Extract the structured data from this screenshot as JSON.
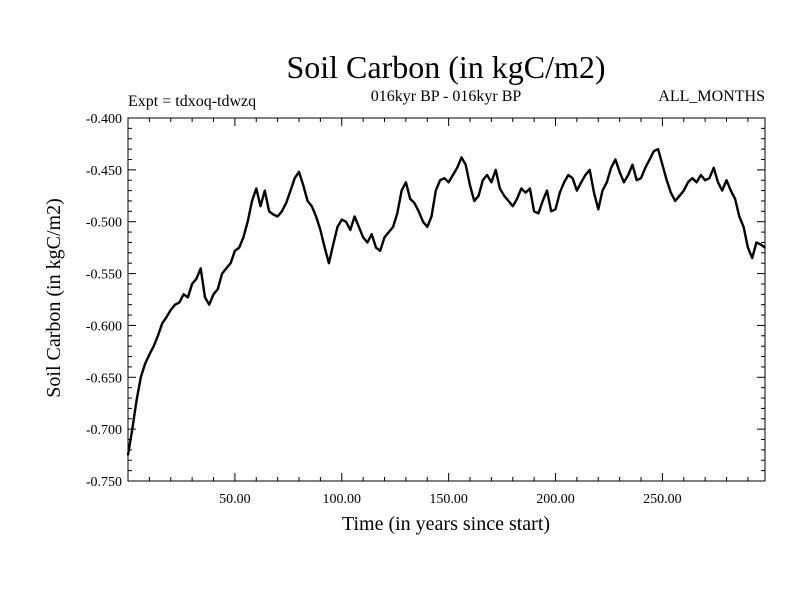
{
  "chart_data": {
    "type": "line",
    "title": "Soil Carbon (in kgC/m2)",
    "subtitle_left": "Expt = tdxoq-tdwzq",
    "subtitle_center": "016kyr BP - 016kyr BP",
    "subtitle_right": "ALL_MONTHS",
    "xlabel": "Time (in years since start)",
    "ylabel": "Soil Carbon (in kgC/m2)",
    "xlim": [
      0,
      298
    ],
    "ylim": [
      -0.75,
      -0.4
    ],
    "x_ticks": [
      50,
      100,
      150,
      200,
      250
    ],
    "x_tick_labels": [
      "50.00",
      "100.00",
      "150.00",
      "200.00",
      "250.00"
    ],
    "y_ticks": [
      -0.75,
      -0.7,
      -0.65,
      -0.6,
      -0.55,
      -0.5,
      -0.45,
      -0.4
    ],
    "y_tick_labels": [
      "-0.750",
      "-0.700",
      "-0.650",
      "-0.600",
      "-0.550",
      "-0.500",
      "-0.450",
      "-0.400"
    ],
    "grid": false,
    "series": [
      {
        "color": "#000000",
        "x": [
          0,
          2,
          4,
          6,
          8,
          10,
          12,
          14,
          16,
          18,
          20,
          22,
          24,
          26,
          28,
          30,
          32,
          34,
          36,
          38,
          40,
          42,
          44,
          46,
          48,
          50,
          52,
          54,
          56,
          58,
          60,
          62,
          64,
          66,
          68,
          70,
          72,
          74,
          76,
          78,
          80,
          82,
          84,
          86,
          88,
          90,
          92,
          94,
          96,
          98,
          100,
          102,
          104,
          106,
          108,
          110,
          112,
          114,
          116,
          118,
          120,
          122,
          124,
          126,
          128,
          130,
          132,
          134,
          136,
          138,
          140,
          142,
          144,
          146,
          148,
          150,
          152,
          154,
          156,
          158,
          160,
          162,
          164,
          166,
          168,
          170,
          172,
          174,
          176,
          178,
          180,
          182,
          184,
          186,
          188,
          190,
          192,
          194,
          196,
          198,
          200,
          202,
          204,
          206,
          208,
          210,
          212,
          214,
          216,
          218,
          220,
          222,
          224,
          226,
          228,
          230,
          232,
          234,
          236,
          238,
          240,
          242,
          244,
          246,
          248,
          250,
          252,
          254,
          256,
          258,
          260,
          262,
          264,
          266,
          268,
          270,
          272,
          274,
          276,
          278,
          280,
          282,
          284,
          286,
          288,
          290,
          292,
          294,
          296,
          298
        ],
        "y": [
          -0.725,
          -0.7,
          -0.672,
          -0.65,
          -0.637,
          -0.628,
          -0.62,
          -0.61,
          -0.598,
          -0.592,
          -0.585,
          -0.58,
          -0.578,
          -0.57,
          -0.573,
          -0.56,
          -0.555,
          -0.545,
          -0.573,
          -0.58,
          -0.57,
          -0.565,
          -0.55,
          -0.545,
          -0.54,
          -0.528,
          -0.525,
          -0.515,
          -0.5,
          -0.48,
          -0.468,
          -0.485,
          -0.47,
          -0.49,
          -0.493,
          -0.495,
          -0.49,
          -0.482,
          -0.47,
          -0.458,
          -0.452,
          -0.465,
          -0.48,
          -0.485,
          -0.495,
          -0.508,
          -0.525,
          -0.54,
          -0.522,
          -0.505,
          -0.498,
          -0.5,
          -0.508,
          -0.495,
          -0.505,
          -0.515,
          -0.52,
          -0.512,
          -0.525,
          -0.528,
          -0.515,
          -0.51,
          -0.505,
          -0.492,
          -0.47,
          -0.462,
          -0.478,
          -0.482,
          -0.49,
          -0.5,
          -0.505,
          -0.495,
          -0.47,
          -0.46,
          -0.458,
          -0.462,
          -0.455,
          -0.448,
          -0.438,
          -0.445,
          -0.465,
          -0.48,
          -0.475,
          -0.46,
          -0.455,
          -0.462,
          -0.45,
          -0.468,
          -0.475,
          -0.48,
          -0.485,
          -0.478,
          -0.468,
          -0.472,
          -0.468,
          -0.49,
          -0.492,
          -0.48,
          -0.47,
          -0.49,
          -0.488,
          -0.472,
          -0.462,
          -0.455,
          -0.458,
          -0.47,
          -0.462,
          -0.455,
          -0.45,
          -0.472,
          -0.488,
          -0.47,
          -0.462,
          -0.448,
          -0.44,
          -0.452,
          -0.462,
          -0.455,
          -0.445,
          -0.46,
          -0.458,
          -0.448,
          -0.44,
          -0.432,
          -0.43,
          -0.445,
          -0.46,
          -0.472,
          -0.48,
          -0.475,
          -0.47,
          -0.462,
          -0.458,
          -0.462,
          -0.455,
          -0.46,
          -0.458,
          -0.448,
          -0.462,
          -0.47,
          -0.46,
          -0.47,
          -0.478,
          -0.495,
          -0.505,
          -0.525,
          -0.535,
          -0.52,
          -0.522,
          -0.525
        ]
      }
    ]
  }
}
